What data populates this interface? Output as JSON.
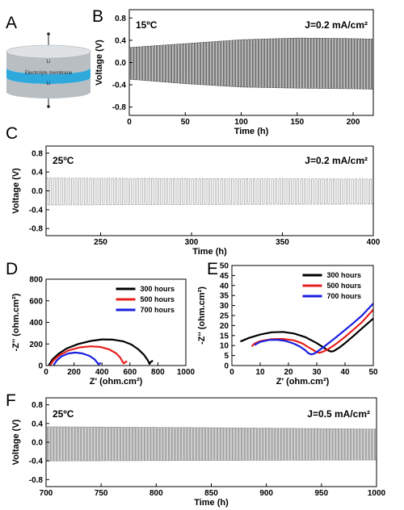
{
  "panel_letters": [
    "A",
    "B",
    "C",
    "D",
    "E",
    "F"
  ],
  "schematic": {
    "top_label": "Li",
    "membrane_label": "Electrolyte membrane",
    "bottom_label": "Li",
    "colors": {
      "lithium": "#c8ccd0",
      "membrane": "#2fa8dc"
    }
  },
  "chart_data": [
    {
      "panel": "B",
      "type": "line",
      "annotation_temp": "15ºC",
      "annotation_current": "J=0.2 mA/cm²",
      "xlabel": "Time (h)",
      "ylabel": "Voltage (V)",
      "xlim": [
        0,
        218
      ],
      "ylim": [
        -0.95,
        0.95
      ],
      "xticks": [
        "0",
        "50",
        "100",
        "150",
        "200"
      ],
      "yticks": [
        "-0.8",
        "-0.4",
        "0.0",
        "0.4",
        "0.8"
      ],
      "cycle_period_h": 2,
      "envelope_x": [
        0,
        50,
        100,
        150,
        200,
        218
      ],
      "envelope_upper": [
        0.27,
        0.34,
        0.41,
        0.44,
        0.43,
        0.42
      ],
      "envelope_lower": [
        -0.3,
        -0.38,
        -0.44,
        -0.46,
        -0.47,
        -0.48
      ],
      "color": "#333333"
    },
    {
      "panel": "C",
      "type": "line",
      "annotation_temp": "25ºC",
      "annotation_current": "J=0.2 mA/cm²",
      "xlabel": "Time (h)",
      "ylabel": "Voltage (V)",
      "xlim": [
        220,
        400
      ],
      "ylim": [
        -0.95,
        0.95
      ],
      "xticks": [
        "250",
        "300",
        "350",
        "400"
      ],
      "yticks": [
        "-0.8",
        "-0.4",
        "0.0",
        "0.4",
        "0.8"
      ],
      "cycle_period_h": 2,
      "envelope_x": [
        220,
        300,
        400
      ],
      "envelope_upper": [
        0.27,
        0.26,
        0.25
      ],
      "envelope_lower": [
        -0.3,
        -0.29,
        -0.28
      ],
      "color": "#999999"
    },
    {
      "panel": "D",
      "type": "line",
      "xlabel": "Z' (ohm.cm²)",
      "ylabel": "-Z'' (ohm.cm²)",
      "xlim": [
        0,
        1000
      ],
      "ylim": [
        0,
        800
      ],
      "xticks": [
        "0",
        "200",
        "400",
        "600",
        "800",
        "1000"
      ],
      "yticks": [
        "0",
        "200",
        "400",
        "600",
        "800"
      ],
      "legend_position": "top-right",
      "series": [
        {
          "name": "300 hours",
          "color": "#000000",
          "x": [
            20,
            45,
            90,
            150,
            230,
            320,
            400,
            480,
            550,
            610,
            660,
            700,
            725,
            735,
            740,
            750,
            765
          ],
          "y": [
            5,
            55,
            110,
            160,
            200,
            228,
            242,
            240,
            225,
            195,
            150,
            100,
            55,
            30,
            15,
            35,
            45
          ]
        },
        {
          "name": "500 hours",
          "color": "#e8201c",
          "x": [
            30,
            55,
            95,
            160,
            240,
            320,
            390,
            450,
            500,
            530,
            545,
            555,
            565,
            580
          ],
          "y": [
            5,
            50,
            95,
            140,
            168,
            178,
            172,
            150,
            115,
            75,
            40,
            20,
            30,
            40
          ]
        },
        {
          "name": "700 hours",
          "color": "#1a1fe0",
          "x": [
            55,
            75,
            110,
            160,
            210,
            260,
            310,
            345,
            365,
            375,
            382,
            392
          ],
          "y": [
            5,
            45,
            85,
            112,
            120,
            112,
            90,
            60,
            30,
            12,
            18,
            25
          ]
        }
      ]
    },
    {
      "panel": "E",
      "type": "line",
      "xlabel": "Z' (ohm.cm²)",
      "ylabel": "-Z'' (ohm.cm²)",
      "xlim": [
        0,
        50
      ],
      "ylim": [
        0,
        50
      ],
      "xticks": [
        "0",
        "10",
        "20",
        "30",
        "40",
        "50"
      ],
      "yticks": [
        "0",
        "5",
        "10",
        "15",
        "20",
        "25",
        "30",
        "35",
        "40",
        "45",
        "50"
      ],
      "legend_position": "top-right",
      "series": [
        {
          "name": "300 hours",
          "color": "#000000",
          "x": [
            3,
            6,
            10,
            14,
            18,
            22,
            26,
            30,
            32,
            34,
            35,
            36,
            38,
            40,
            43,
            46,
            50
          ],
          "y": [
            12,
            13.8,
            15.5,
            16.6,
            16.8,
            16,
            14.2,
            11.2,
            9.4,
            7.6,
            7,
            7.2,
            9,
            11.2,
            14.8,
            18.6,
            23.5
          ]
        },
        {
          "name": "500 hours",
          "color": "#e8201c",
          "x": [
            7,
            8,
            10,
            14,
            18,
            22,
            25,
            27,
            29,
            30,
            31,
            32,
            34,
            36,
            38,
            40,
            43,
            46,
            50
          ],
          "y": [
            9.5,
            11,
            12.2,
            13.2,
            13.3,
            12.6,
            11,
            9.2,
            7.6,
            6.6,
            6.4,
            6.8,
            8.2,
            10,
            12.1,
            14.3,
            18,
            21.7,
            28
          ]
        },
        {
          "name": "700 hours",
          "color": "#1a1fe0",
          "x": [
            8,
            10,
            13,
            16,
            19,
            22,
            24,
            26,
            27,
            28,
            29,
            30,
            32,
            34,
            36,
            38,
            40,
            43,
            46,
            50
          ],
          "y": [
            10.3,
            11.8,
            12.8,
            12.9,
            12.3,
            10.9,
            9.5,
            7.6,
            6.2,
            5.6,
            5.9,
            6.8,
            8.8,
            11,
            13.2,
            15.5,
            17.8,
            21.3,
            25,
            31
          ]
        }
      ]
    },
    {
      "panel": "F",
      "type": "line",
      "annotation_temp": "25ºC",
      "annotation_current": "J=0.5 mA/cm²",
      "xlabel": "Time (h)",
      "ylabel": "Voltage (V)",
      "xlim": [
        700,
        1000
      ],
      "ylim": [
        -0.95,
        0.95
      ],
      "xticks": [
        "700",
        "750",
        "800",
        "850",
        "900",
        "950",
        "1000"
      ],
      "yticks": [
        "-0.8",
        "-0.4",
        "0.0",
        "0.4",
        "0.8"
      ],
      "cycle_period_h": 2,
      "envelope_x": [
        700,
        850,
        1000
      ],
      "envelope_upper": [
        0.33,
        0.31,
        0.28
      ],
      "envelope_lower": [
        -0.4,
        -0.39,
        -0.38
      ],
      "color": "#7a7a7a"
    }
  ]
}
